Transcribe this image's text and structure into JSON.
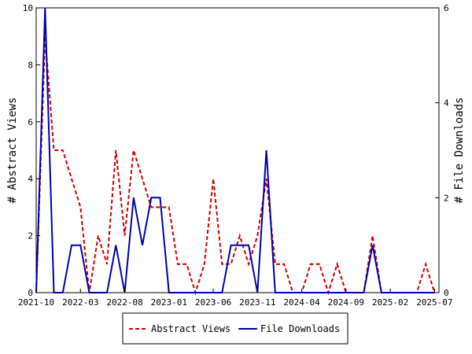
{
  "chart_data": {
    "type": "line",
    "x_ticks": [
      "2021-10",
      "2022-03",
      "2022-08",
      "2023-01",
      "2023-06",
      "2023-11",
      "2024-04",
      "2024-09",
      "2025-02",
      "2025-07"
    ],
    "left_axis": {
      "label": "# Abstract Views",
      "ylim": [
        0,
        10
      ],
      "ticks": [
        "0",
        "2",
        "4",
        "6",
        "8",
        "10"
      ]
    },
    "right_axis": {
      "label": "# File Downloads",
      "ylim": [
        0,
        6
      ],
      "ticks": [
        "0",
        "2",
        "4",
        "6"
      ]
    },
    "x_range": [
      0,
      45.5
    ],
    "series": [
      {
        "name": "Abstract Views",
        "axis": "left",
        "color": "#cc0000",
        "dash": true,
        "x": [
          0,
          1,
          2,
          3,
          4,
          5,
          6,
          7,
          8,
          9,
          10,
          11,
          12,
          13,
          14,
          15,
          16,
          17,
          18,
          19,
          20,
          21,
          22,
          23,
          24,
          25,
          26,
          27,
          28,
          29,
          30,
          31,
          32,
          33,
          34,
          35,
          36,
          37,
          38,
          39,
          40,
          41,
          42,
          43,
          44,
          45
        ],
        "values": [
          0,
          9,
          5,
          5,
          4,
          3,
          0,
          2,
          1,
          5,
          2,
          5,
          4,
          3,
          3,
          3,
          1,
          1,
          0,
          1,
          4,
          1,
          1,
          2,
          1,
          2,
          4,
          1,
          1,
          0,
          0,
          1,
          1,
          0,
          1,
          0,
          0,
          0,
          2,
          0,
          0,
          0,
          0,
          0,
          1,
          0
        ]
      },
      {
        "name": "File Downloads",
        "axis": "right",
        "color": "#0000aa",
        "dash": false,
        "x": [
          0,
          1,
          2,
          3,
          4,
          5,
          6,
          7,
          8,
          9,
          10,
          11,
          12,
          13,
          14,
          15,
          16,
          17,
          18,
          19,
          20,
          21,
          22,
          23,
          24,
          25,
          26,
          27,
          28,
          29,
          30,
          31,
          32,
          33,
          34,
          35,
          36,
          37,
          38,
          39,
          40,
          41,
          42,
          43,
          44,
          45
        ],
        "values": [
          0,
          6,
          0,
          0,
          1,
          1,
          0,
          0,
          0,
          1,
          0,
          2,
          1,
          2,
          2,
          0,
          0,
          0,
          0,
          0,
          0,
          0,
          1,
          1,
          1,
          0,
          3,
          0,
          0,
          0,
          0,
          0,
          0,
          0,
          0,
          0,
          0,
          0,
          1,
          0,
          0,
          0,
          0,
          0,
          0,
          0
        ]
      }
    ],
    "grid": false,
    "legend_position": "bottom-center"
  }
}
